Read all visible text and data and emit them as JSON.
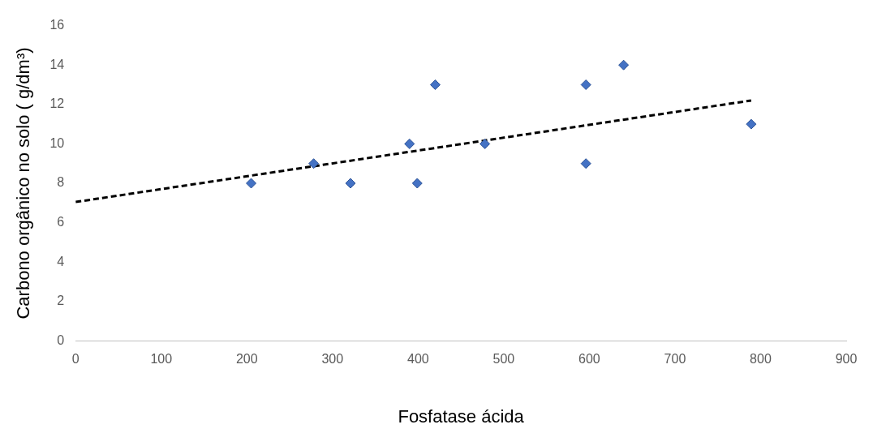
{
  "chart_data": {
    "type": "scatter",
    "xlabel": "Fosfatase ácida",
    "ylabel": "Carbono orgânico no solo ( g/dm³)",
    "xlim": [
      0,
      900
    ],
    "xticks": [
      0,
      100,
      200,
      300,
      400,
      500,
      600,
      700,
      800,
      900
    ],
    "ylim": [
      0,
      16
    ],
    "yticks": [
      0,
      2,
      4,
      6,
      8,
      10,
      12,
      14,
      16
    ],
    "grid": false,
    "legend": false,
    "marker": "diamond",
    "series": [
      {
        "color": "#4472c4",
        "x": [
          205,
          278,
          321,
          390,
          399,
          420,
          478,
          596,
          596,
          640,
          789
        ],
        "values": [
          8,
          9,
          8,
          10,
          8,
          13,
          10,
          9,
          13,
          14,
          11
        ]
      },
      {
        "type": "line",
        "color": "#000000",
        "line_style": "dashed",
        "marker": "none",
        "x": [
          0,
          789
        ],
        "values": [
          7.05,
          12.2
        ]
      }
    ]
  }
}
